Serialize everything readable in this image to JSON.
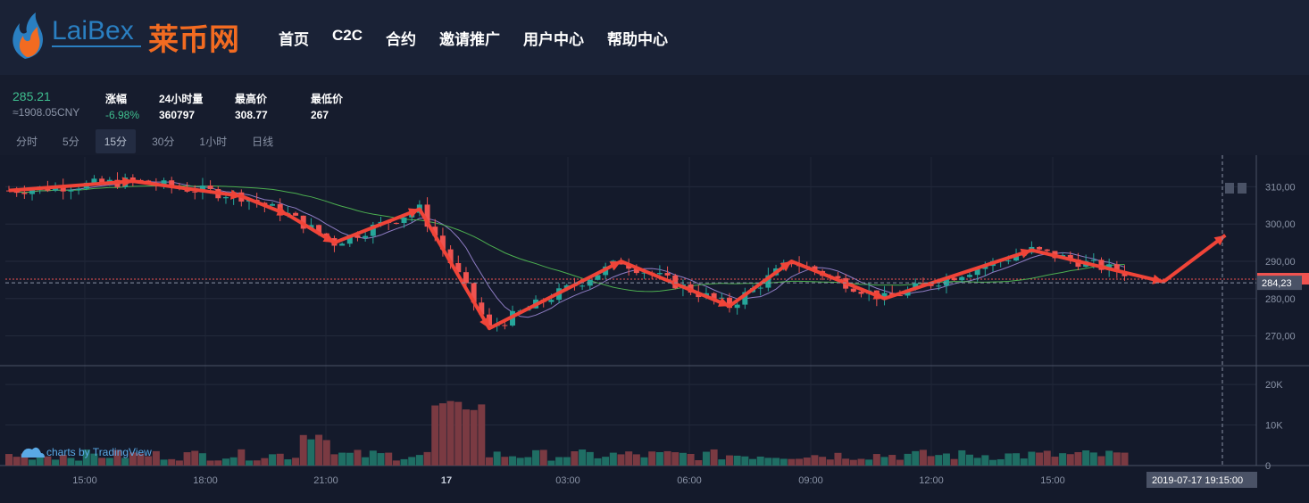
{
  "brand": {
    "logo_text": "LaiBex",
    "name_cn": "莱币网"
  },
  "nav": [
    "首页",
    "C2C",
    "合约",
    "邀请推广",
    "用户中心",
    "帮助中心"
  ],
  "ticker": {
    "price": "285.21",
    "cny": "≈1908.05CNY",
    "stats": [
      {
        "label": "涨幅",
        "value": "-6.98%"
      },
      {
        "label": "24小时量",
        "value": "360797"
      },
      {
        "label": "最高价",
        "value": "308.77"
      },
      {
        "label": "最低价",
        "value": "267"
      }
    ]
  },
  "intervals": [
    "分时",
    "5分",
    "15分",
    "30分",
    "1小时",
    "日线"
  ],
  "active_interval": "15分",
  "colors": {
    "up": "#26a69a",
    "down": "#ef5350",
    "accent": "#f04438",
    "ma1": "#8e7cc3",
    "ma2": "#4caf50"
  },
  "chart_data": {
    "type": "candlestick",
    "price_axis": {
      "ticks": [
        270,
        280,
        290,
        300,
        310
      ],
      "tick_labels": [
        "270,00",
        "280,00",
        "290,00",
        "300,00",
        "310,00"
      ],
      "range": [
        262,
        318
      ]
    },
    "volume_axis": {
      "ticks": [
        0,
        10000,
        20000
      ],
      "tick_labels": [
        "0",
        "10K",
        "20K"
      ]
    },
    "time_labels": [
      "15:00",
      "18:00",
      "21:00",
      "17",
      "03:00",
      "06:00",
      "09:00",
      "12:00",
      "15:00"
    ],
    "crosshair": {
      "price_label": "284,23",
      "time_label": "2019-07-17 19:15:00",
      "price": 284.23
    },
    "last_price": 285.21,
    "trend_path": [
      [
        0,
        309
      ],
      [
        16,
        311.5
      ],
      [
        30,
        307.5
      ],
      [
        36,
        302.5
      ],
      [
        42,
        295
      ],
      [
        53,
        304
      ],
      [
        62,
        272
      ],
      [
        79,
        290
      ],
      [
        93,
        278
      ],
      [
        101,
        290
      ],
      [
        113,
        280
      ],
      [
        132,
        293
      ],
      [
        149,
        284.5
      ],
      [
        157,
        297
      ]
    ],
    "watermark": "charts by TradingView"
  }
}
